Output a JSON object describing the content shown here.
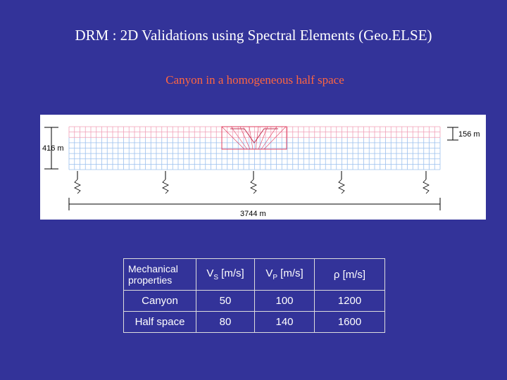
{
  "title": "DRM : 2D Validations using Spectral Elements (Geo.ELSE)",
  "subtitle": "Canyon in a homogeneous half space",
  "figure": {
    "depth_label": "416 m",
    "canyon_depth_label": "156 m",
    "width_label": "3744 m"
  },
  "table": {
    "header": [
      {
        "text": "Mechanical properties"
      },
      {
        "text": "V",
        "sub": "S",
        "rest": " [m/s]"
      },
      {
        "text": "V",
        "sub": "P",
        "rest": " [m/s]"
      },
      {
        "text": "ρ [m/s]"
      }
    ],
    "rows": [
      [
        "Canyon",
        50,
        100,
        1200
      ],
      [
        "Half space",
        80,
        140,
        1600
      ]
    ]
  }
}
